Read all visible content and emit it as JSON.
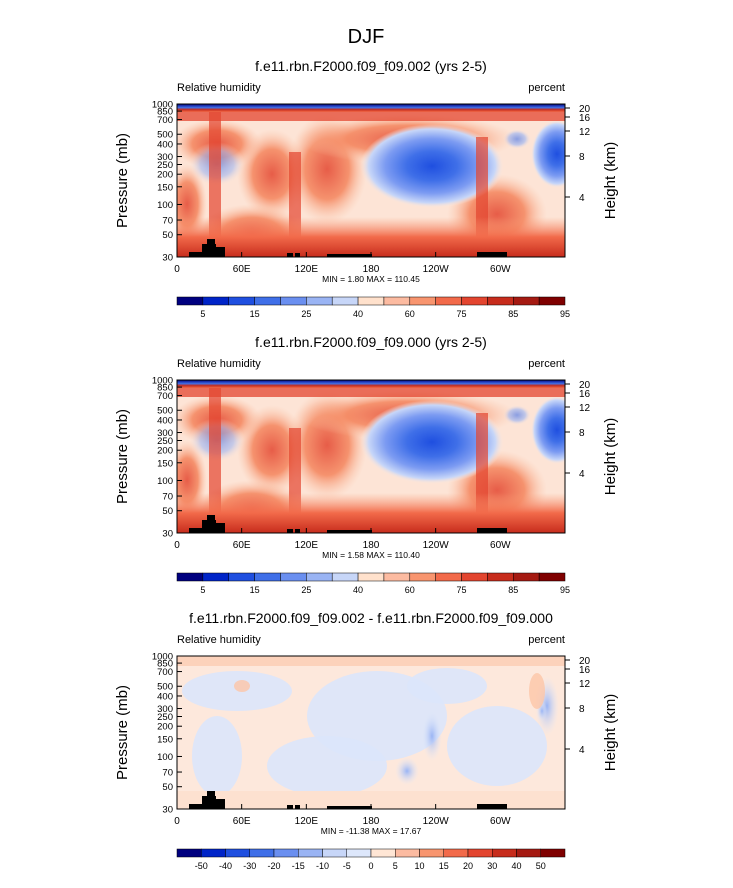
{
  "page": {
    "title": "DJF"
  },
  "chart_data": [
    {
      "type": "heatmap",
      "title": "f.e11.rbn.F2000.f09_f09.002 (yrs 2-5)",
      "left_label": "Relative humidity",
      "right_label": "percent",
      "stats": "MIN =   1.80  MAX = 110.45",
      "field": "base"
    },
    {
      "type": "heatmap",
      "title": "f.e11.rbn.F2000.f09_f09.000 (yrs 2-5)",
      "left_label": "Relative humidity",
      "right_label": "percent",
      "stats": "MIN =   1.58  MAX = 110.40",
      "field": "base"
    },
    {
      "type": "heatmap",
      "title": "f.e11.rbn.F2000.f09_f09.002 - f.e11.rbn.F2000.f09_f09.000",
      "left_label": "Relative humidity",
      "right_label": "percent",
      "stats": "MIN = -11.38  MAX =  17.67",
      "field": "diff"
    }
  ],
  "axes": {
    "ylabel": "Pressure (mb)",
    "ylabel_right": "Height (km)",
    "pressure_ticks": [
      "30",
      "50",
      "70",
      "100",
      "150",
      "200",
      "250",
      "300",
      "400",
      "500",
      "700",
      "850",
      "1000"
    ],
    "pressure_values": [
      30,
      50,
      70,
      100,
      150,
      200,
      250,
      300,
      400,
      500,
      700,
      850,
      1000
    ],
    "height_ticks": [
      "20",
      "16",
      "12",
      "8",
      "4"
    ],
    "height_values": [
      20,
      16,
      12,
      8,
      4
    ],
    "lon_ticks": [
      "0",
      "60E",
      "120E",
      "180",
      "120W",
      "60W"
    ],
    "lon_values": [
      0,
      60,
      120,
      180,
      240,
      300
    ],
    "xlim": [
      0,
      360
    ],
    "ylim": [
      1000,
      30
    ]
  },
  "colorbars": {
    "full": {
      "labels": [
        "5",
        "15",
        "25",
        "40",
        "60",
        "75",
        "85",
        "95"
      ],
      "colors": [
        "#00007f",
        "#0024c8",
        "#1f4fe0",
        "#3f6fe8",
        "#6a8ff0",
        "#9ab4f4",
        "#c7d6f8",
        "#ffe1cc",
        "#fcbba1",
        "#f8956f",
        "#f26a4a",
        "#e3452f",
        "#c72c1c",
        "#a51a12",
        "#7f0000"
      ]
    },
    "diff": {
      "labels": [
        "-50",
        "-40",
        "-30",
        "-20",
        "-15",
        "-10",
        "-5",
        "0",
        "5",
        "10",
        "15",
        "20",
        "30",
        "40",
        "50"
      ],
      "colors": [
        "#00007f",
        "#0024c8",
        "#1f4fe0",
        "#3f6fe8",
        "#6a8ff0",
        "#9ab4f4",
        "#c7d6f8",
        "#dde7fb",
        "#ffe6d5",
        "#fcbba1",
        "#f8956f",
        "#f26a4a",
        "#e3452f",
        "#c72c1c",
        "#a51a12",
        "#7f0000"
      ]
    }
  }
}
